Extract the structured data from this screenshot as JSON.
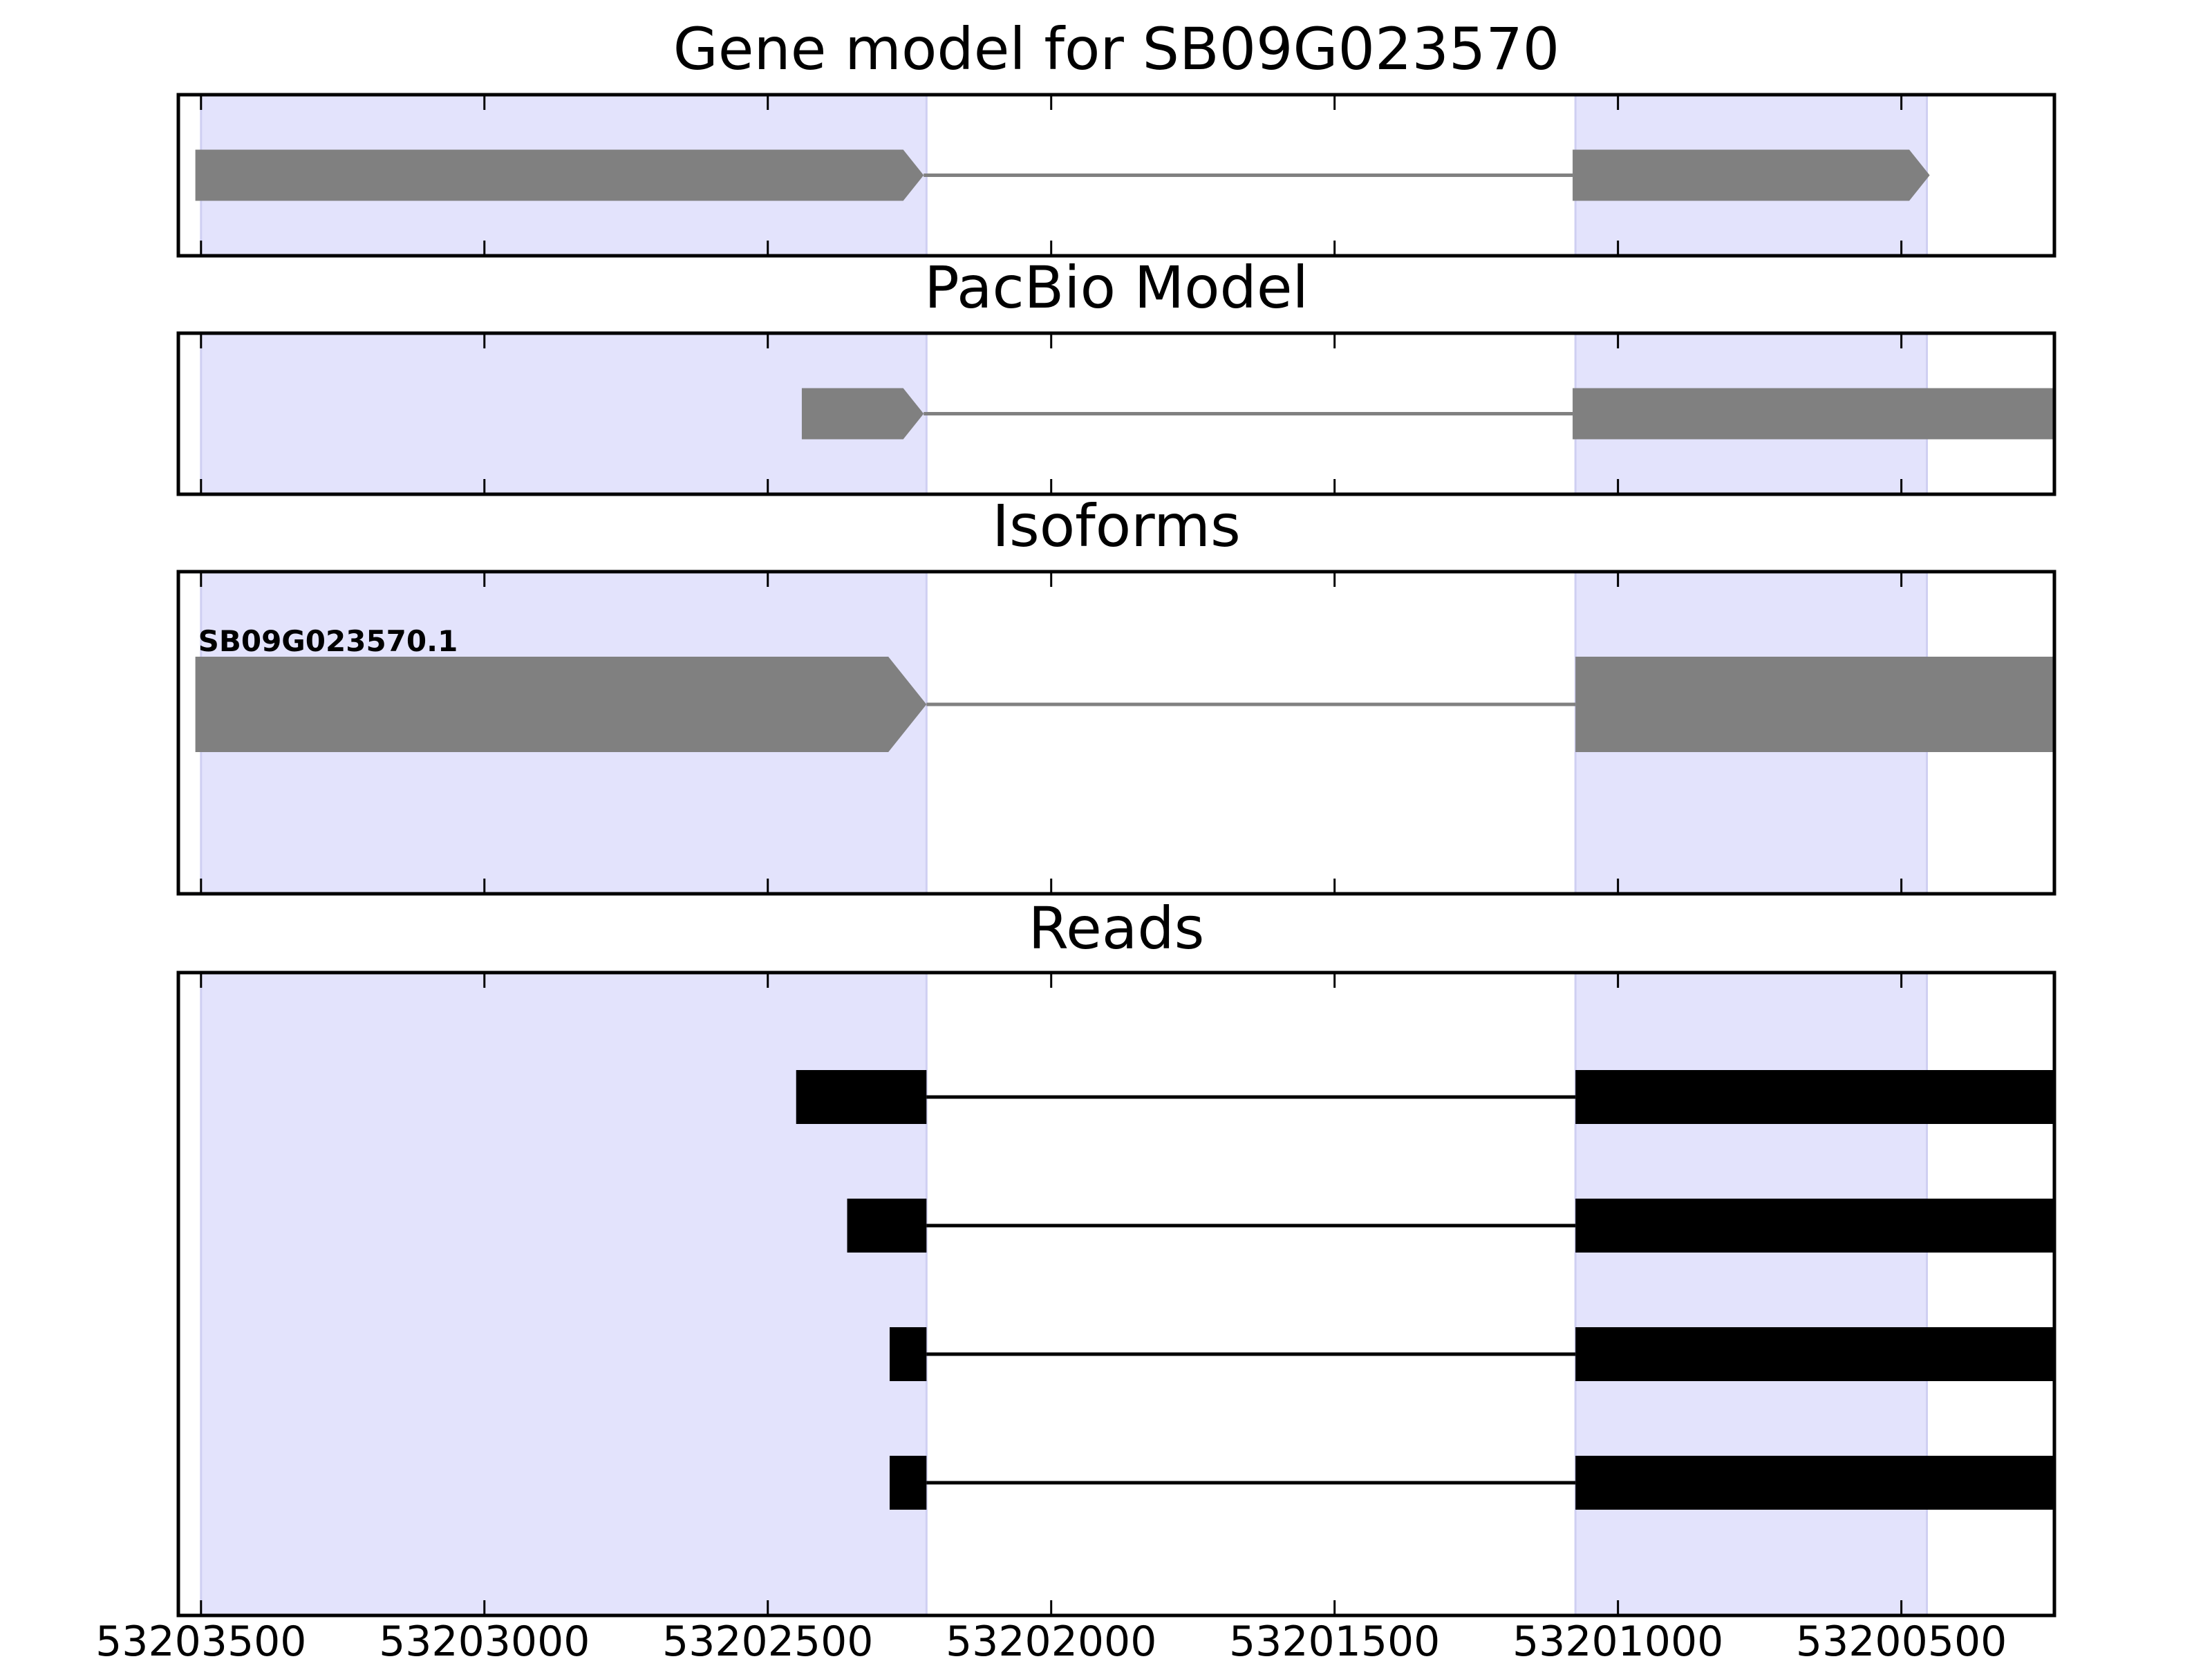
{
  "chart_data": {
    "type": "gene-track",
    "x_axis": {
      "range": [
        53203540,
        53200230
      ],
      "reversed": true,
      "tick_values": [
        53203500,
        53203000,
        53202500,
        53202000,
        53201500,
        53201000,
        53200500
      ],
      "tick_labels": [
        "53203500",
        "53203000",
        "53202500",
        "53202000",
        "53201500",
        "53201000",
        "53200500"
      ]
    },
    "colors": {
      "exon_highlight": "#e3e3fc",
      "model_feature": "#808080",
      "read_feature": "#000000",
      "axes": "#000000"
    },
    "highlight_regions": [
      {
        "start": 53203500,
        "end": 53202220
      },
      {
        "start": 53201075,
        "end": 53200455
      }
    ],
    "panels": [
      {
        "title": "Gene model for SB09G023570",
        "style": "model",
        "rows": [
          {
            "label": "",
            "exons": [
              [
                53203510,
                53202225
              ],
              [
                53201080,
                53200450
              ]
            ]
          }
        ]
      },
      {
        "title": "PacBio Model",
        "style": "model",
        "rows": [
          {
            "label": "",
            "exons": [
              [
                53202440,
                53202225
              ],
              [
                53201080,
                53200090
              ]
            ]
          }
        ]
      },
      {
        "title": "Isoforms",
        "style": "model",
        "rows": [
          {
            "label": "SB09G023570.1",
            "exons": [
              [
                53203510,
                53202220
              ],
              [
                53201075,
                53200095
              ]
            ]
          }
        ]
      },
      {
        "title": "Reads",
        "style": "read",
        "rows": [
          {
            "label": "",
            "exons": [
              [
                53202450,
                53202220
              ],
              [
                53201075,
                53200150
              ]
            ]
          },
          {
            "label": "",
            "exons": [
              [
                53202360,
                53202220
              ],
              [
                53201075,
                53200095
              ]
            ]
          },
          {
            "label": "",
            "exons": [
              [
                53202285,
                53202220
              ],
              [
                53201075,
                53200150
              ]
            ]
          },
          {
            "label": "",
            "exons": [
              [
                53202285,
                53202220
              ],
              [
                53201075,
                53200150
              ]
            ]
          }
        ]
      }
    ]
  }
}
